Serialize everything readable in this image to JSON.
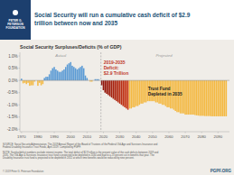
{
  "chart_data": {
    "type": "bar",
    "title": "Social Security will run a cumulative cash deficit of $2.9\ntrillion between now and 2035",
    "subtitle": "Social Security Surpluses/Deficits (% of GDP)",
    "logo": "PETER G.\nPETERSON\nFOUNDATION",
    "xlim": [
      1969,
      2097
    ],
    "ylim": [
      -2.1,
      1.15
    ],
    "yticks": [
      {
        "value": -2.0,
        "label": "-2.0%"
      },
      {
        "value": -1.5,
        "label": "-1.5%"
      },
      {
        "value": -1.0,
        "label": "-1.0%"
      },
      {
        "value": -0.5,
        "label": "-0.5%"
      },
      {
        "value": 0.0,
        "label": "0.0%"
      },
      {
        "value": 0.5,
        "label": "0.5%"
      },
      {
        "value": 1.0,
        "label": "1.0%"
      }
    ],
    "xticks": [
      1970,
      1980,
      1990,
      2000,
      2010,
      2020,
      2030,
      2040,
      2050,
      2060,
      2070,
      2080,
      2090
    ],
    "grid": false,
    "vlines": [
      2018.5
    ],
    "series": [
      {
        "name": "Actual",
        "x": [
          1970,
          1971,
          1972,
          1973,
          1974,
          1975,
          1976,
          1977,
          1978,
          1979,
          1980,
          1981,
          1982,
          1983,
          1984,
          1985,
          1986,
          1987,
          1988,
          1989,
          1990,
          1991,
          1992,
          1993,
          1994,
          1995,
          1996,
          1997,
          1998,
          1999,
          2000,
          2001,
          2002,
          2003,
          2004,
          2005,
          2006,
          2007,
          2008,
          2009,
          2010,
          2011,
          2012,
          2013,
          2014,
          2015,
          2016,
          2017,
          2018
        ],
        "values": [
          0.07,
          -0.12,
          -0.1,
          -0.15,
          -0.1,
          -0.22,
          -0.2,
          -0.2,
          -0.05,
          0.0,
          -0.22,
          -0.1,
          -0.2,
          -0.15,
          0.1,
          0.15,
          0.15,
          0.25,
          0.4,
          0.5,
          0.55,
          0.45,
          0.4,
          0.35,
          0.35,
          0.4,
          0.45,
          0.55,
          0.65,
          0.7,
          0.75,
          0.6,
          0.55,
          0.5,
          0.45,
          0.5,
          0.55,
          0.6,
          0.5,
          0.2,
          0.1,
          0.0,
          -0.05,
          -0.05,
          0.0,
          0.05,
          0.05,
          0.05,
          0.0
        ],
        "colors": [
          "#5b9bd5",
          "#f4b942",
          "#f4b942",
          "#f4b942",
          "#f4b942",
          "#f4b942",
          "#f4b942",
          "#f4b942",
          "#f4b942",
          "#5b9bd5",
          "#f4b942",
          "#f4b942",
          "#f4b942",
          "#f4b942",
          "#5b9bd5",
          "#5b9bd5",
          "#5b9bd5",
          "#5b9bd5",
          "#5b9bd5",
          "#5b9bd5",
          "#5b9bd5",
          "#5b9bd5",
          "#5b9bd5",
          "#5b9bd5",
          "#5b9bd5",
          "#5b9bd5",
          "#5b9bd5",
          "#5b9bd5",
          "#5b9bd5",
          "#5b9bd5",
          "#5b9bd5",
          "#5b9bd5",
          "#5b9bd5",
          "#5b9bd5",
          "#5b9bd5",
          "#5b9bd5",
          "#5b9bd5",
          "#5b9bd5",
          "#5b9bd5",
          "#5b9bd5",
          "#5b9bd5",
          "#5b9bd5",
          "#f4b942",
          "#f4b942",
          "#5b9bd5",
          "#5b9bd5",
          "#5b9bd5",
          "#5b9bd5",
          "#5b9bd5"
        ]
      },
      {
        "name": "Projected",
        "x": [
          2019,
          2020,
          2021,
          2022,
          2023,
          2024,
          2025,
          2026,
          2027,
          2028,
          2029,
          2030,
          2031,
          2032,
          2033,
          2034,
          2035,
          2036,
          2037,
          2038,
          2039,
          2040,
          2041,
          2042,
          2043,
          2044,
          2045,
          2046,
          2047,
          2048,
          2049,
          2050,
          2051,
          2052,
          2053,
          2054,
          2055,
          2056,
          2057,
          2058,
          2059,
          2060,
          2061,
          2062,
          2063,
          2064,
          2065,
          2066,
          2067,
          2068,
          2069,
          2070,
          2071,
          2072,
          2073,
          2074,
          2075,
          2076,
          2077,
          2078,
          2079,
          2080,
          2081,
          2082,
          2083,
          2084,
          2085,
          2086,
          2087,
          2088,
          2089,
          2090,
          2091,
          2092,
          2093,
          2094,
          2095
        ],
        "values": [
          -0.2,
          -0.4,
          -0.5,
          -0.55,
          -0.6,
          -0.65,
          -0.7,
          -0.75,
          -0.8,
          -0.85,
          -0.9,
          -0.95,
          -1.0,
          -1.05,
          -1.1,
          -1.15,
          -1.2,
          -1.15,
          -1.15,
          -1.1,
          -1.1,
          -1.05,
          -1.05,
          -1.0,
          -0.95,
          -0.95,
          -0.9,
          -0.9,
          -0.85,
          -0.85,
          -0.85,
          -0.85,
          -0.85,
          -0.9,
          -0.9,
          -0.95,
          -0.95,
          -1.0,
          -1.0,
          -1.05,
          -1.1,
          -1.1,
          -1.15,
          -1.15,
          -1.2,
          -1.25,
          -1.3,
          -1.3,
          -1.35,
          -1.35,
          -1.35,
          -1.4,
          -1.4,
          -1.4,
          -1.4,
          -1.4,
          -1.4,
          -1.42,
          -1.43,
          -1.44,
          -1.45,
          -1.45,
          -1.45,
          -1.46,
          -1.46,
          -1.46,
          -1.46,
          -1.47,
          -1.47,
          -1.47,
          -1.47,
          -1.47,
          -1.47,
          -1.47,
          -1.47,
          -1.47,
          -1.47
        ],
        "colors": [
          "#8c140d",
          "#90170d",
          "#94190e",
          "#981b0e",
          "#9b1d0f",
          "#9f1f0f",
          "#a3210f",
          "#a72310",
          "#aa2510",
          "#ae2711",
          "#b22911",
          "#b62c12",
          "#b92e12",
          "#bd3013",
          "#c13213",
          "#c53414",
          "#c83614",
          "#f4b942",
          "#f4b942",
          "#f4b942",
          "#f4b942",
          "#f4b942",
          "#f4b942",
          "#f4b942",
          "#f4b942",
          "#f4b942",
          "#f4b942",
          "#f4b942",
          "#f4b942",
          "#f4b942",
          "#f4b942",
          "#f4b942",
          "#f4b942",
          "#f4b942",
          "#f4b942",
          "#f4b942",
          "#f4b942",
          "#f4b942",
          "#f4b942",
          "#f4b942",
          "#f4b942",
          "#f4b942",
          "#f4b942",
          "#f4b942",
          "#f4b942",
          "#f4b942",
          "#f4b942",
          "#f4b942",
          "#f4b942",
          "#f4b942",
          "#f4b942",
          "#f4b942",
          "#f4b942",
          "#f4b942",
          "#f4b942",
          "#f4b942",
          "#f4b942",
          "#f4b942",
          "#f4b942",
          "#f4b942",
          "#f4b942",
          "#f4b942",
          "#f4b942",
          "#f4b942",
          "#f4b942",
          "#f4b942",
          "#f4b942",
          "#f4b942",
          "#f4b942",
          "#f4b942",
          "#f4b942",
          "#f4b942",
          "#f4b942",
          "#f4b942",
          "#f4b942",
          "#f4b942",
          "#f4b942"
        ]
      }
    ],
    "annotations": [
      "2019-2035\nDeficit:\n$2.9 Trillion",
      "Trust Fund\nDepleted in 2035"
    ],
    "source": "SOURCE: Social Security Administration, The 2019 Annual Report of the Board of Trustees of the Federal Old-Age and Survivors Insurance and\nFederal Disability Insurance Trust Funds, April 2019. Compiled by PGPF.",
    "note": "NOTE: Surplus/deficit numbers exclude interest income. The total deficit of $2.9 trillion is the present value of the cash deficits between 2019 and\n2035. The Old-Age & Survivors Insurance trust fund is projected to be depleted in 2034 and lead to a 23 percent cut in benefits that year. The\nDisability Insurance trust fund is projected to be depleted in 2052 at which time benefits would be reduced by nine percent.",
    "footer": "© 2019 Peter G. Peterson Foundation",
    "site": "PGPF.ORG"
  }
}
